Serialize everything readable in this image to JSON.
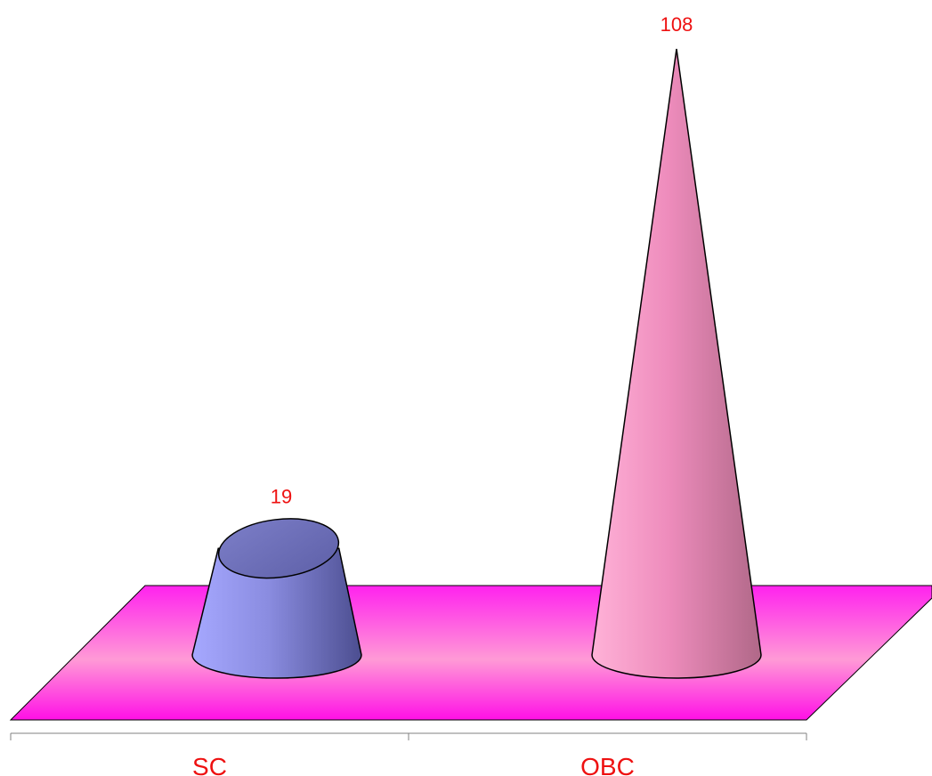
{
  "chart_data": {
    "type": "bar",
    "shape": "cone",
    "three_d": true,
    "categories": [
      "SC",
      "OBC"
    ],
    "values": [
      19,
      108
    ],
    "value_labels": [
      "19",
      "108"
    ],
    "ylim": [
      0,
      108
    ],
    "grid": false,
    "legend": "none",
    "colors": {
      "series": [
        "#8f90e8",
        "#f28cc0"
      ],
      "floor": "#ff00ff",
      "floor_light": "#ffb0e4",
      "label_text": "#ee1111",
      "outline": "#000000",
      "axis": "#808080"
    }
  }
}
